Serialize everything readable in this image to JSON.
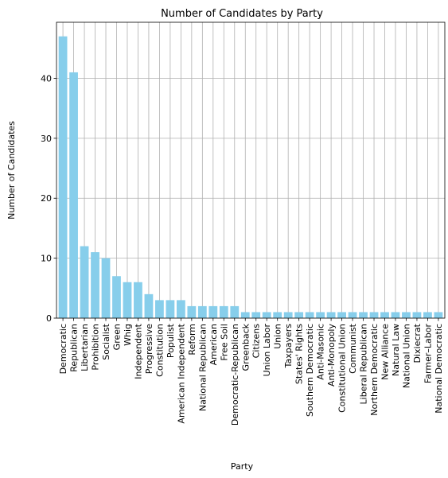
{
  "chart_data": {
    "type": "bar",
    "title": "Number of Candidates by Party",
    "xlabel": "Party",
    "ylabel": "Number of Candidates",
    "ylim": [
      0,
      49.35
    ],
    "yticks": [
      0,
      10,
      20,
      30,
      40
    ],
    "grid": true,
    "bar_color": "#87ceeb",
    "categories": [
      "Democratic",
      "Republican",
      "Libertarian",
      "Prohibition",
      "Socialist",
      "Green",
      "Whig",
      "Independent",
      "Progressive",
      "Constitution",
      "Populist",
      "American Independent",
      "Reform",
      "National Republican",
      "American",
      "Free Soil",
      "Democratic-Republican",
      "Greenback",
      "Citizens",
      "Union Labor",
      "Union",
      "Taxpayers",
      "States' Rights",
      "Southern Democratic",
      "Anti-Masonic",
      "Anti-Monopoly",
      "Constitutional Union",
      "Communist",
      "Liberal Republican",
      "Northern Democratic",
      "New Alliance",
      "Natural Law",
      "National Union",
      "Dixiecrat",
      "Farmer–Labor",
      "National Democratic"
    ],
    "values": [
      47,
      41,
      12,
      11,
      10,
      7,
      6,
      6,
      4,
      3,
      3,
      3,
      2,
      2,
      2,
      2,
      2,
      1,
      1,
      1,
      1,
      1,
      1,
      1,
      1,
      1,
      1,
      1,
      1,
      1,
      1,
      1,
      1,
      1,
      1,
      1
    ]
  }
}
